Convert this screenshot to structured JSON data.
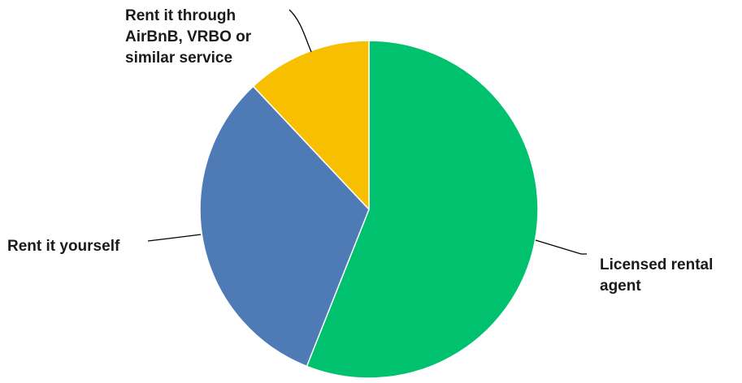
{
  "chart_data": {
    "type": "pie",
    "title": "",
    "start_angle_deg": 0,
    "direction": "clockwise",
    "legend": "none",
    "slices": [
      {
        "label": "Licensed rental agent",
        "value": 56,
        "color": "#00c16e"
      },
      {
        "label": "Rent it yourself",
        "value": 32,
        "color": "#4e7ab5"
      },
      {
        "label": "Rent it through AirBnB, VRBO or similar service",
        "value": 12,
        "color": "#f8bf00"
      }
    ]
  },
  "labels": {
    "licensed": "Licensed rental\nagent",
    "yourself": "Rent it yourself",
    "airbnb": "Rent it through\nAirBnB, VRBO or\nsimilar service"
  }
}
